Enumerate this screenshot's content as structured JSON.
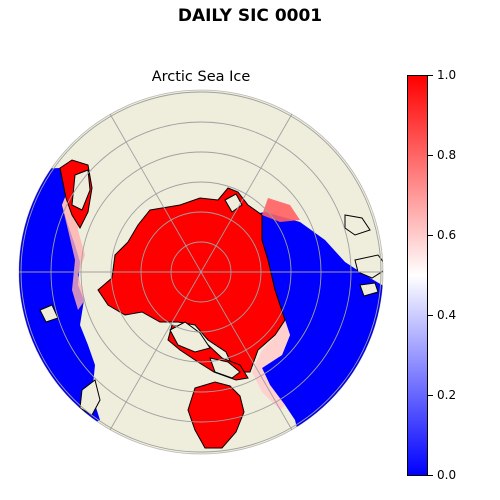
{
  "figure": {
    "suptitle": "DAILY SIC 0001",
    "axes_title": "Arctic Sea Ice"
  },
  "map": {
    "projection": "north-polar-stereographic",
    "land_color": "#EFEDDC",
    "coastline_color": "#000000",
    "gridlines": true
  },
  "colorbar": {
    "colormap": "bwr",
    "min": 0.0,
    "max": 1.0,
    "ticks": [
      {
        "value": 0.0,
        "label": "0.0"
      },
      {
        "value": 0.2,
        "label": "0.2"
      },
      {
        "value": 0.4,
        "label": "0.4"
      },
      {
        "value": 0.6,
        "label": "0.6"
      },
      {
        "value": 0.8,
        "label": "0.8"
      },
      {
        "value": 1.0,
        "label": "1.0"
      }
    ],
    "colors": {
      "low": "#0000FF",
      "mid": "#FFFFFF",
      "high": "#FF0000"
    }
  }
}
